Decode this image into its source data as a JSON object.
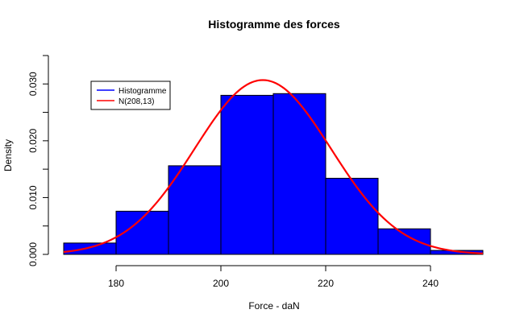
{
  "chart_data": {
    "type": "bar",
    "title": "Histogramme des forces",
    "xlabel": "Force - daN",
    "ylabel": "Density",
    "xlim": [
      170,
      250
    ],
    "ylim": [
      0,
      0.035
    ],
    "x_ticks": [
      "180",
      "200",
      "220",
      "240"
    ],
    "x_tick_values": [
      180,
      200,
      220,
      240
    ],
    "y_ticks": [
      "0.000",
      "0.010",
      "0.020",
      "0.030"
    ],
    "y_tick_values": [
      0,
      0.01,
      0.02,
      0.03
    ],
    "bins": [
      {
        "start": 170,
        "end": 180,
        "density": 0.002
      },
      {
        "start": 180,
        "end": 190,
        "density": 0.0076
      },
      {
        "start": 190,
        "end": 200,
        "density": 0.0156
      },
      {
        "start": 200,
        "end": 210,
        "density": 0.028
      },
      {
        "start": 210,
        "end": 220,
        "density": 0.0283
      },
      {
        "start": 220,
        "end": 230,
        "density": 0.0134
      },
      {
        "start": 230,
        "end": 240,
        "density": 0.0045
      },
      {
        "start": 240,
        "end": 250,
        "density": 0.0007
      }
    ],
    "normal_curve": {
      "mean": 208,
      "sd": 13
    },
    "series": [
      {
        "name": "Histogramme",
        "color": "#0000ff"
      },
      {
        "name": "N(208,13)",
        "color": "#ff0000"
      }
    ],
    "legend": {
      "placement": "top-left",
      "items": [
        {
          "label": "Histogramme",
          "color": "#0000ff"
        },
        {
          "label": "N(208,13)",
          "color": "#ff0000"
        }
      ]
    },
    "bar_color": "#0000ff",
    "curve_color": "#ff0000",
    "grid": false
  }
}
